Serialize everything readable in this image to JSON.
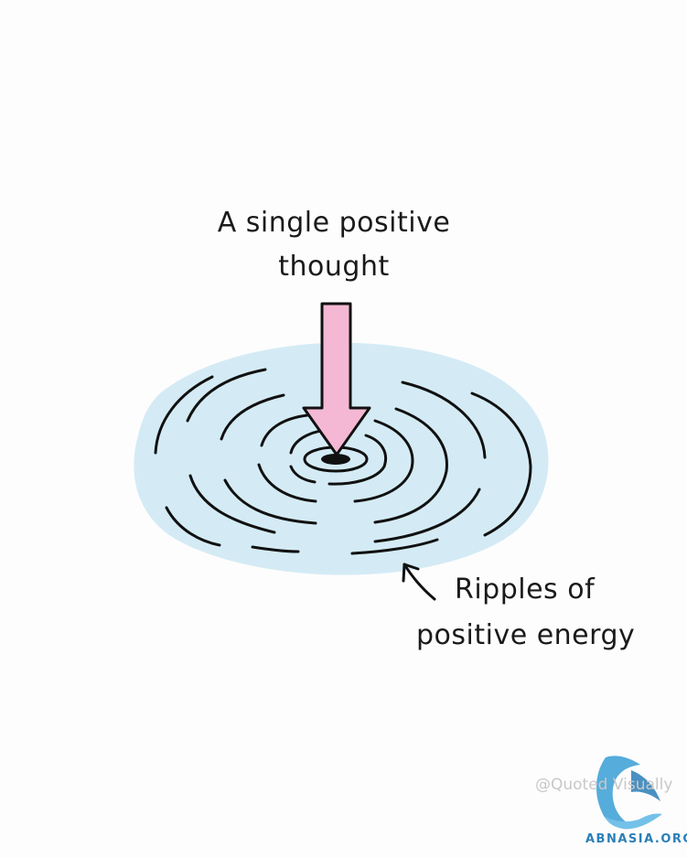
{
  "diagram": {
    "top_label": {
      "line1": "A single positive",
      "line2": "thought"
    },
    "bottom_label": {
      "line1": "Ripples of",
      "line2": "positive energy"
    }
  },
  "watermark": {
    "credit": "@Quoted Visually",
    "logo_text": "ABNASIA.ORG"
  },
  "colors": {
    "background": "#fdfdfd",
    "water": "#d4ebf5",
    "arrow_fill": "#f4b8d4",
    "ink": "#111111",
    "logo": "#2a7fb8"
  }
}
